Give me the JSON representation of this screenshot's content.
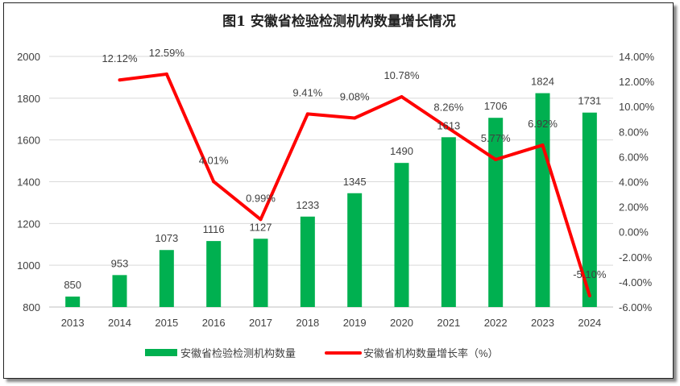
{
  "chart_data": {
    "type": "bar+line",
    "title": "图1 安徽省检验检测机构数量增长情况",
    "categories": [
      "2013",
      "2014",
      "2015",
      "2016",
      "2017",
      "2018",
      "2019",
      "2020",
      "2021",
      "2022",
      "2023",
      "2024"
    ],
    "series": [
      {
        "name": "安徽省检验检测机构数量",
        "type": "bar",
        "axis": "left",
        "color": "#00b050",
        "values": [
          850,
          953,
          1073,
          1116,
          1127,
          1233,
          1345,
          1490,
          1613,
          1706,
          1824,
          1731
        ],
        "labels": [
          "850",
          "953",
          "1073",
          "1116",
          "1127",
          "1233",
          "1345",
          "1490",
          "1613",
          "1706",
          "1824",
          "1731"
        ]
      },
      {
        "name": "安徽省机构数量增长率（%）",
        "type": "line",
        "axis": "right",
        "color": "#ff0000",
        "values": [
          null,
          12.12,
          12.59,
          4.01,
          0.99,
          9.41,
          9.08,
          10.78,
          8.26,
          5.77,
          6.92,
          -5.1
        ],
        "labels": [
          "",
          "12.12%",
          "12.59%",
          "4.01%",
          "0.99%",
          "9.41%",
          "9.08%",
          "10.78%",
          "8.26%",
          "5.77%",
          "6.92%",
          "-5.10%"
        ]
      }
    ],
    "ylim_left": [
      800,
      2000
    ],
    "yticks_left": [
      "800",
      "1000",
      "1200",
      "1400",
      "1600",
      "1800",
      "2000"
    ],
    "ylim_right": [
      -6,
      14
    ],
    "yticks_right": [
      "-6.00%",
      "-4.00%",
      "-2.00%",
      "0.00%",
      "2.00%",
      "4.00%",
      "6.00%",
      "8.00%",
      "10.00%",
      "12.00%",
      "14.00%"
    ],
    "grid": "horizontal",
    "legend": "bottom"
  }
}
